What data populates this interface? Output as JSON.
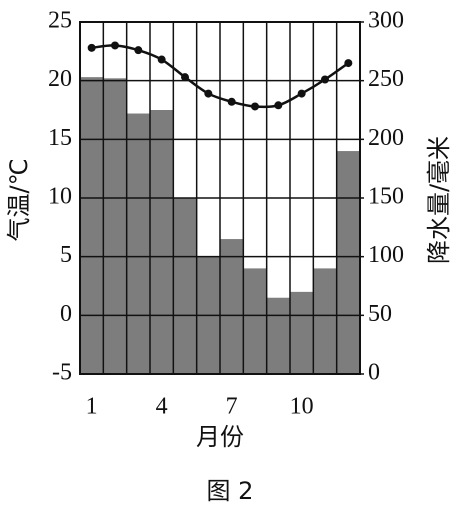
{
  "chart_data": {
    "type": "climate",
    "caption": "图 2",
    "x_label": "月份",
    "y_label": "气温/℃",
    "y2_label": "降水量/毫米",
    "categories": [
      "1",
      null,
      null,
      "4",
      null,
      null,
      "7",
      null,
      null,
      "10",
      null,
      null
    ],
    "series": [
      {
        "kind": "bar",
        "axis": "y2",
        "color": "#7d7d7d",
        "values": [
          253,
          252,
          222,
          225,
          150,
          100,
          115,
          90,
          65,
          70,
          90,
          190
        ]
      },
      {
        "kind": "line",
        "color": "#111111",
        "values": [
          22.8,
          23,
          22.6,
          21.8,
          20.3,
          18.9,
          18.2,
          17.8,
          17.9,
          18.9,
          20.1,
          21.5
        ]
      }
    ],
    "ylim": [
      -5,
      25
    ],
    "yticks": [
      -5,
      0,
      5,
      10,
      15,
      20,
      25
    ],
    "y2lim": [
      0,
      300
    ],
    "y2ticks": [
      0,
      50,
      100,
      150,
      200,
      250,
      300
    ],
    "grid": true
  }
}
